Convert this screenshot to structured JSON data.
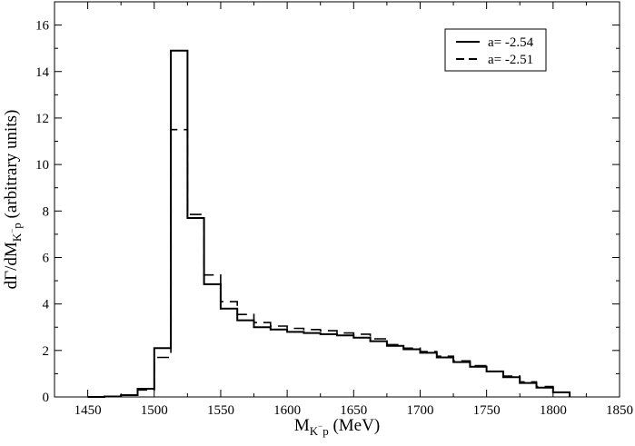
{
  "chart_data": {
    "type": "line",
    "step": true,
    "x": [
      1450,
      1462.5,
      1475,
      1487.5,
      1500,
      1512.5,
      1525,
      1537.5,
      1550,
      1562.5,
      1575,
      1587.5,
      1600,
      1612.5,
      1625,
      1637.5,
      1650,
      1662.5,
      1675,
      1687.5,
      1700,
      1712.5,
      1725,
      1737.5,
      1750,
      1762.5,
      1775,
      1787.5,
      1800,
      1812.5
    ],
    "series": [
      {
        "name": "a= -2.54",
        "dash": "solid",
        "values": [
          0,
          0.02,
          0.08,
          0.35,
          2.1,
          14.9,
          7.7,
          4.85,
          3.8,
          3.3,
          3.0,
          2.9,
          2.8,
          2.75,
          2.7,
          2.65,
          2.55,
          2.4,
          2.2,
          2.05,
          1.9,
          1.7,
          1.5,
          1.3,
          1.1,
          0.85,
          0.6,
          0.4,
          0.2,
          0
        ]
      },
      {
        "name": "a= -2.51",
        "dash": "dashed",
        "values": [
          0,
          0.02,
          0.07,
          0.3,
          1.7,
          11.5,
          7.85,
          5.25,
          4.1,
          3.55,
          3.2,
          3.05,
          2.95,
          2.9,
          2.85,
          2.75,
          2.7,
          2.5,
          2.25,
          2.1,
          1.95,
          1.75,
          1.55,
          1.35,
          1.1,
          0.9,
          0.65,
          0.45,
          0.2,
          0
        ]
      }
    ],
    "xlim": [
      1425,
      1850
    ],
    "ylim": [
      0,
      17
    ],
    "xticks": [
      1450,
      1500,
      1550,
      1600,
      1650,
      1700,
      1750,
      1800,
      1850
    ],
    "yticks": [
      0,
      2,
      4,
      6,
      8,
      10,
      12,
      14,
      16
    ],
    "xlabel": {
      "main": "M",
      "sub": "K",
      "sup": "−",
      "sub2": "p",
      "tail": " (MeV)"
    },
    "ylabel": {
      "main": "dΓ/dM",
      "sub": "K",
      "sup": "−",
      "sub2": "p",
      "tail": "  (arbitrary units)"
    },
    "legend_position": "top-right",
    "grid": false
  }
}
